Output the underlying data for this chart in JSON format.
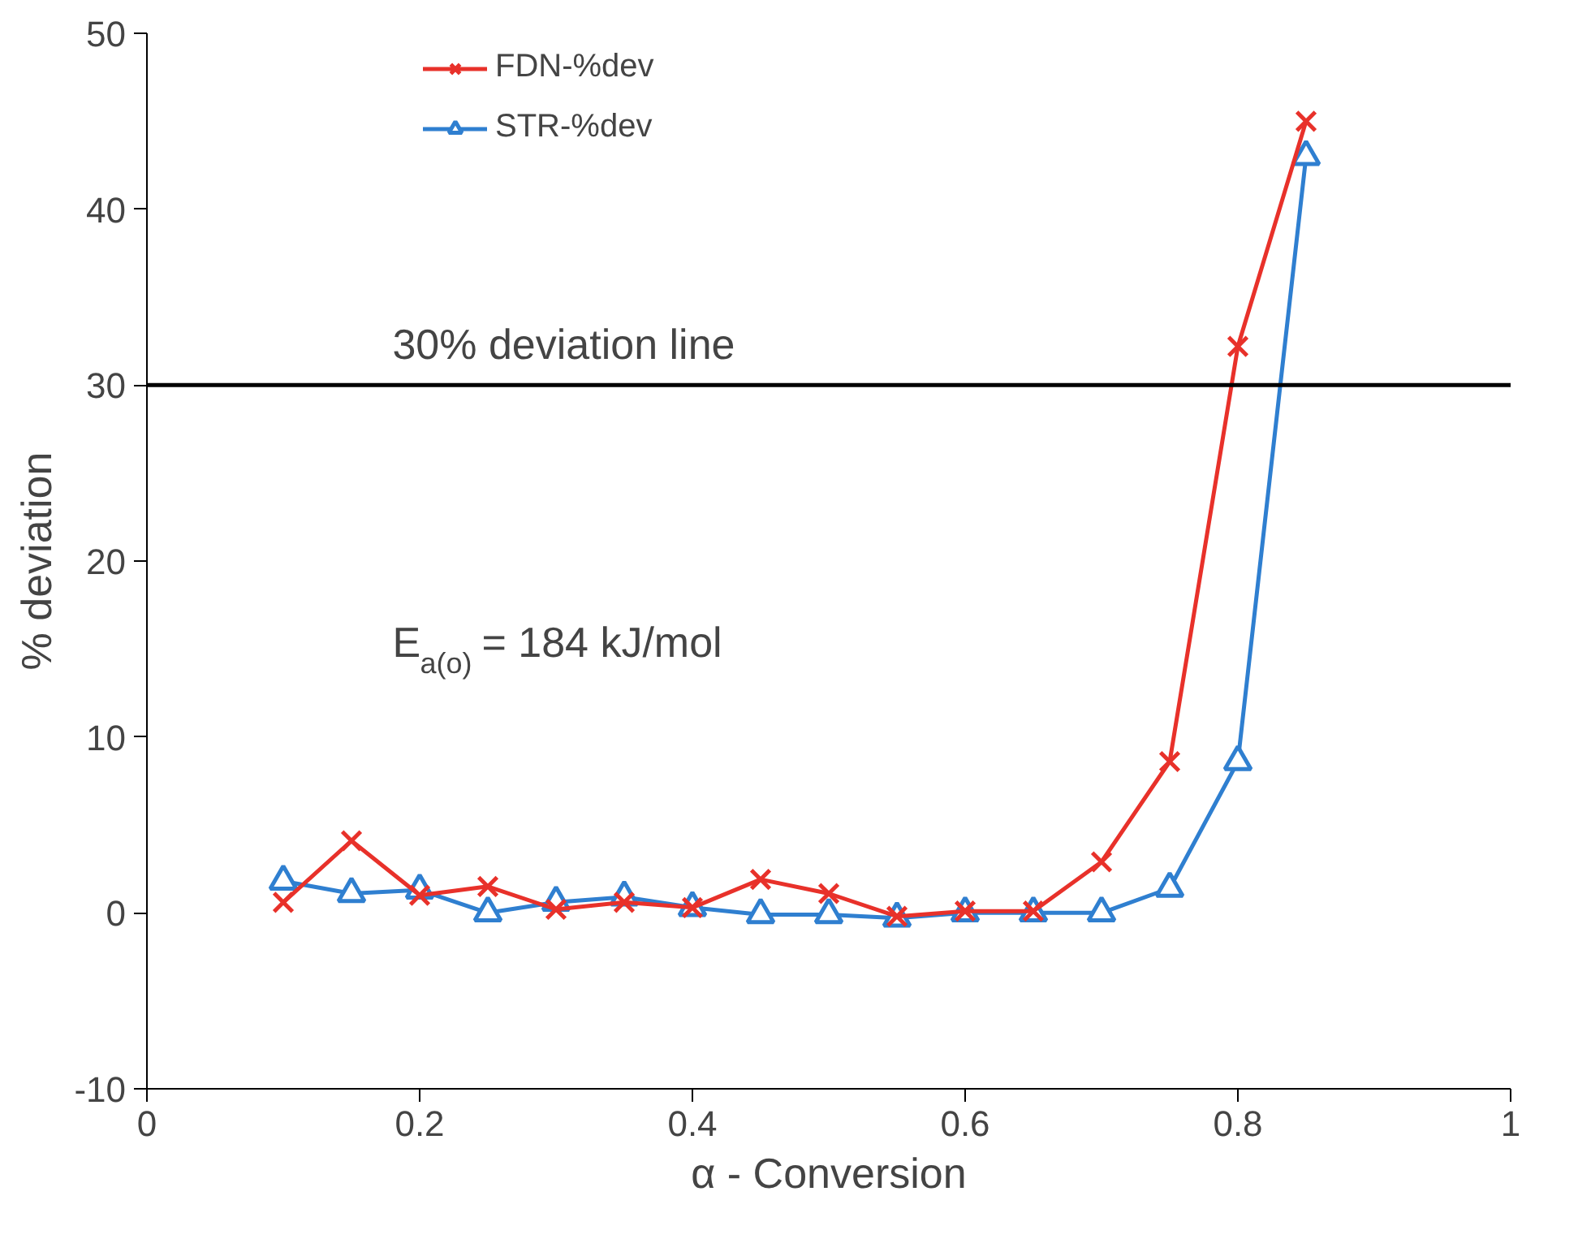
{
  "chart_data": {
    "type": "line",
    "xlabel": "α - Conversion",
    "ylabel": "% deviation",
    "x": [
      0.1,
      0.15,
      0.2,
      0.25,
      0.3,
      0.35,
      0.4,
      0.45,
      0.5,
      0.55,
      0.6,
      0.65,
      0.7,
      0.75,
      0.8,
      0.85
    ],
    "series": [
      {
        "name": "FDN-%dev",
        "color": "#e8312a",
        "marker": "cross",
        "values": [
          0.6,
          4.1,
          1.0,
          1.5,
          0.2,
          0.6,
          0.3,
          1.9,
          1.1,
          -0.2,
          0.1,
          0.1,
          2.9,
          8.6,
          32.2,
          45
        ]
      },
      {
        "name": "STR-%dev",
        "color": "#2f7fd0",
        "marker": "triangle",
        "values": [
          1.8,
          1.1,
          1.3,
          0.0,
          0.6,
          0.9,
          0.3,
          -0.1,
          -0.1,
          -0.3,
          0.0,
          0.0,
          0.0,
          1.4,
          8.6,
          43
        ]
      }
    ],
    "xlim": [
      0,
      1
    ],
    "ylim": [
      -10,
      50
    ],
    "xticks": [
      0,
      0.2,
      0.4,
      0.6,
      0.8,
      1
    ],
    "yticks": [
      -10,
      0,
      10,
      20,
      30,
      40,
      50
    ],
    "ref_lines": [
      {
        "axis": "y",
        "value": 30,
        "label": "30% deviation line",
        "color": "#000000"
      }
    ],
    "annotations": [
      "E$_{a(o)}$ = 184 kJ/mol"
    ],
    "grid": false,
    "legend": "top left",
    "line_style": "solid"
  }
}
